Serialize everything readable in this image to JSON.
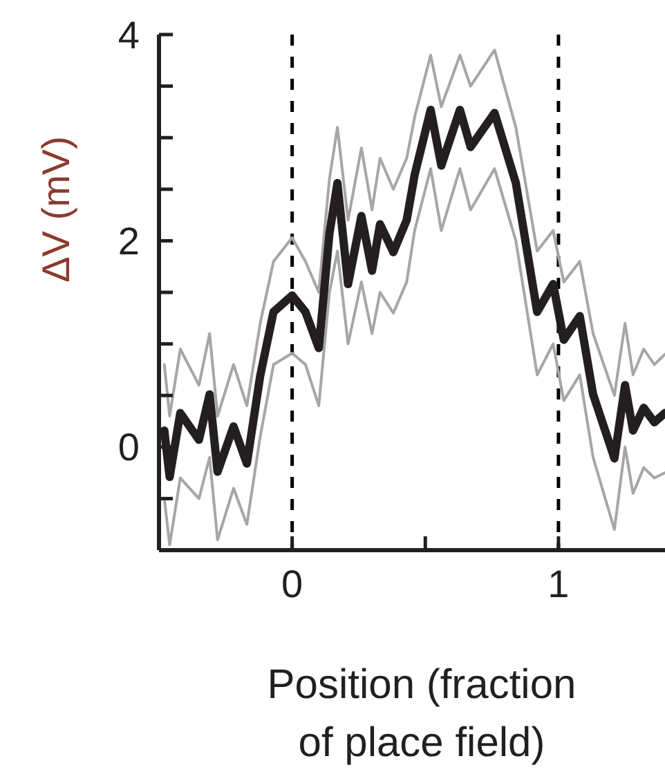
{
  "chart_data": {
    "type": "line",
    "xlabel": "Position (fraction\nof place field)",
    "ylabel": "ΔV (mV)",
    "xlim": [
      -0.5,
      1.4
    ],
    "ylim": [
      -1,
      4
    ],
    "xticks": [
      0,
      {
        "value": 0.5,
        "label": null
      },
      1
    ],
    "yticks": [
      {
        "value": -0.5,
        "label": null
      },
      0,
      {
        "value": 0.5,
        "label": null
      },
      {
        "value": 1,
        "label": null
      },
      {
        "value": 1.5,
        "label": null
      },
      2,
      {
        "value": 2.5,
        "label": null
      },
      {
        "value": 3,
        "label": null
      },
      {
        "value": 3.5,
        "label": null
      },
      4
    ],
    "ref_lines": [
      {
        "axis": "x",
        "value": 0,
        "color": "#000000",
        "line_style": "dashed"
      },
      {
        "axis": "x",
        "value": 1,
        "color": "#000000",
        "line_style": "dashed"
      }
    ],
    "grid": false,
    "marker": "none",
    "line_style": "solid",
    "x": [
      -0.48,
      -0.46,
      -0.42,
      -0.35,
      -0.31,
      -0.28,
      -0.22,
      -0.17,
      -0.12,
      -0.07,
      0,
      0.05,
      0.1,
      0.14,
      0.17,
      0.21,
      0.26,
      0.3,
      0.33,
      0.38,
      0.43,
      0.46,
      0.52,
      0.56,
      0.63,
      0.67,
      0.76,
      0.84,
      0.92,
      0.98,
      1.02,
      1.08,
      1.13,
      1.21,
      1.25,
      1.28,
      1.32,
      1.36,
      1.4
    ],
    "series": [
      {
        "color": "#231f20",
        "values": [
          0.16,
          -0.29,
          0.33,
          0.07,
          0.51,
          -0.24,
          0.2,
          -0.16,
          0.69,
          1.31,
          1.47,
          1.31,
          0.96,
          2.07,
          2.56,
          1.58,
          2.24,
          1.71,
          2.16,
          1.89,
          2.2,
          2.64,
          3.27,
          2.73,
          3.27,
          2.91,
          3.24,
          2.56,
          1.31,
          1.58,
          1.04,
          1.27,
          0.51,
          -0.11,
          0.6,
          0.16,
          0.38,
          0.24,
          0.33
        ]
      },
      {
        "color": "#a6a6a6",
        "values": [
          0.8,
          0.3,
          0.95,
          0.6,
          1.1,
          0.3,
          0.8,
          0.4,
          1.2,
          1.8,
          2.03,
          1.8,
          1.5,
          2.6,
          3.1,
          2.2,
          2.9,
          2.3,
          2.8,
          2.5,
          2.8,
          3.2,
          3.8,
          3.3,
          3.8,
          3.5,
          3.85,
          3.1,
          1.9,
          2.1,
          1.6,
          1.8,
          1.1,
          0.5,
          1.2,
          0.7,
          0.95,
          0.8,
          0.9
        ]
      },
      {
        "color": "#a6a6a6",
        "values": [
          -0.5,
          -0.95,
          -0.3,
          -0.5,
          -0.1,
          -0.9,
          -0.4,
          -0.75,
          0.1,
          0.8,
          0.91,
          0.8,
          0.4,
          1.5,
          1.9,
          1.0,
          1.6,
          1.1,
          1.5,
          1.3,
          1.6,
          2.1,
          2.7,
          2.1,
          2.7,
          2.3,
          2.7,
          2.0,
          0.7,
          1.0,
          0.45,
          0.7,
          -0.1,
          -0.8,
          0.0,
          -0.45,
          -0.2,
          -0.3,
          -0.25
        ]
      }
    ]
  }
}
